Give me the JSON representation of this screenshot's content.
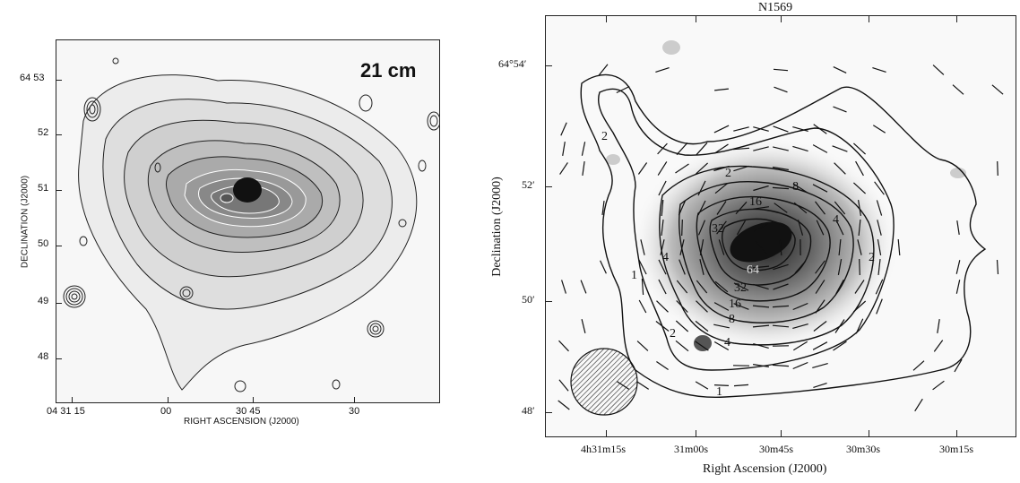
{
  "left_panel": {
    "label": "21 cm",
    "xlabel": "RIGHT ASCENSION (J2000)",
    "ylabel": "DECLINATION (J2000)",
    "yticks": [
      "64 53",
      "52",
      "51",
      "50",
      "49",
      "48"
    ],
    "xticks": [
      "04 31 15",
      "00",
      "30 45",
      "30"
    ]
  },
  "right_panel": {
    "title": "N1569",
    "xlabel": "Right Ascension (J2000)",
    "ylabel": "Declination (J2000)",
    "yticks": [
      "64°54′",
      "52′",
      "50′",
      "48′"
    ],
    "xticks": [
      "4h31m15s",
      "31m00s",
      "30m45s",
      "30m30s",
      "30m15s"
    ],
    "contour_labels": [
      "2",
      "2",
      "8",
      "16",
      "32",
      "4",
      "1",
      "2",
      "4",
      "64",
      "32",
      "16",
      "8",
      "4",
      "2",
      "1"
    ]
  }
}
